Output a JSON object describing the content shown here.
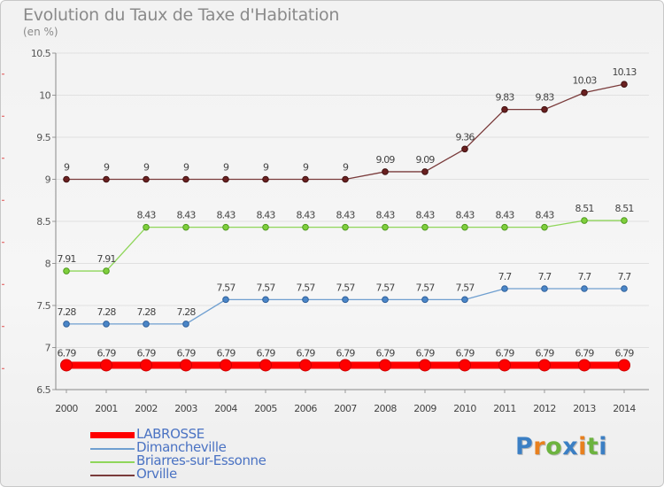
{
  "title": "Evolution du Taux de Taxe d'Habitation",
  "unit": "(en %)",
  "logo": {
    "text": "Proxiti",
    "colors": [
      "#3b7fc4",
      "#e8801e",
      "#6db33f",
      "#3b7fc4",
      "#e8801e",
      "#6db33f",
      "#3b7fc4"
    ]
  },
  "chart_data": {
    "type": "line",
    "title": "Evolution du Taux de Taxe d'Habitation",
    "ylabel": "(en %)",
    "xlabel": "",
    "ylim": [
      6.5,
      10.5
    ],
    "y_ticks": [
      "6.5",
      "7",
      "7.5",
      "8",
      "8.5",
      "9",
      "9.5",
      "10",
      "10.5"
    ],
    "x": [
      "2000",
      "2001",
      "2002",
      "2003",
      "2004",
      "2005",
      "2006",
      "2007",
      "2008",
      "2009",
      "2010",
      "2011",
      "2012",
      "2013",
      "2014"
    ],
    "grid": "horizontal",
    "legend_position": "bottom-left",
    "series": [
      {
        "name": "LABROSSE",
        "color": "#ff0000",
        "values": [
          6.79,
          6.79,
          6.79,
          6.79,
          6.79,
          6.79,
          6.79,
          6.79,
          6.79,
          6.79,
          6.79,
          6.79,
          6.79,
          6.79,
          6.79
        ],
        "labels": [
          "6.79",
          "6.79",
          "6.79",
          "6.79",
          "6.79",
          "6.79",
          "6.79",
          "6.79",
          "6.79",
          "6.79",
          "6.79",
          "6.79",
          "6.79",
          "6.79",
          "6.79"
        ]
      },
      {
        "name": "Dimancheville",
        "color": "#6f9fd0",
        "values": [
          7.28,
          7.28,
          7.28,
          7.28,
          7.57,
          7.57,
          7.57,
          7.57,
          7.57,
          7.57,
          7.57,
          7.7,
          7.7,
          7.7,
          7.7
        ],
        "labels": [
          "7.28",
          "7.28",
          "7.28",
          "7.28",
          "7.57",
          "7.57",
          "7.57",
          "7.57",
          "7.57",
          "7.57",
          "7.57",
          "7.7",
          "7.7",
          "7.7",
          "7.7"
        ]
      },
      {
        "name": "Briarres-sur-Essonne",
        "color": "#8fd65a",
        "values": [
          7.91,
          7.91,
          8.43,
          8.43,
          8.43,
          8.43,
          8.43,
          8.43,
          8.43,
          8.43,
          8.43,
          8.43,
          8.43,
          8.51,
          8.51
        ],
        "labels": [
          "7.91",
          "7.91",
          "8.43",
          "8.43",
          "8.43",
          "8.43",
          "8.43",
          "8.43",
          "8.43",
          "8.43",
          "8.43",
          "8.43",
          "8.43",
          "8.51",
          "8.51"
        ]
      },
      {
        "name": "Orville",
        "color": "#7a3b3b",
        "values": [
          9,
          9,
          9,
          9,
          9,
          9,
          9,
          9,
          9.09,
          9.09,
          9.36,
          9.83,
          9.83,
          10.03,
          10.13
        ],
        "labels": [
          "9",
          "9",
          "9",
          "9",
          "9",
          "9",
          "9",
          "9",
          "9.09",
          "9.09",
          "9.36",
          "9.83",
          "9.83",
          "10.03",
          "10.13"
        ]
      }
    ]
  }
}
